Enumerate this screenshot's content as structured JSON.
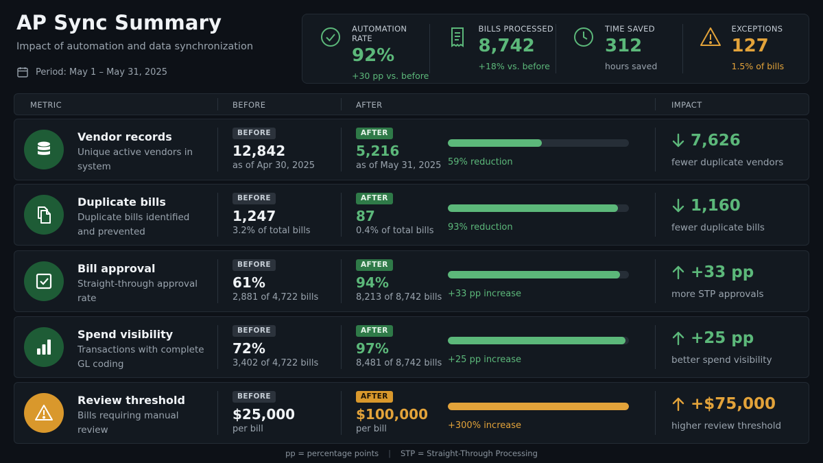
{
  "header": {
    "title": "AP Sync Summary",
    "subtitle": "Impact of automation and data synchronization",
    "period": "Period: May 1 – May 31, 2025"
  },
  "kpis": [
    {
      "label": "AUTOMATION RATE",
      "value": "92%",
      "sub": "+30 pp vs. before",
      "icon": "check-circle-icon"
    },
    {
      "label": "BILLS PROCESSED",
      "value": "8,742",
      "sub": "+18% vs. before",
      "icon": "receipt-icon"
    },
    {
      "label": "TIME SAVED",
      "value": "312",
      "sub": "hours saved",
      "icon": "clock-icon"
    },
    {
      "label": "EXCEPTIONS",
      "value": "127",
      "sub": "1.5% of bills",
      "icon": "warning-icon"
    }
  ],
  "table": {
    "headers": {
      "metric": "METRIC",
      "before": "BEFORE",
      "after": "AFTER",
      "impact": "IMPACT"
    },
    "badge_before": "BEFORE",
    "badge_after": "AFTER",
    "rows": [
      {
        "title": "Vendor records",
        "desc": "Unique active vendors in system",
        "icon": "database-icon",
        "before_value": "12,842",
        "before_sub": "as of Apr 30, 2025",
        "after_value": "5,216",
        "after_sub": "as of May 31, 2025",
        "bar_fraction": 0.52,
        "bar_label": "59% reduction",
        "impact_value": "7,626",
        "impact_direction": "down",
        "impact_sub": "fewer duplicate vendors"
      },
      {
        "title": "Duplicate bills",
        "desc": "Duplicate bills identified and prevented",
        "icon": "documents-icon",
        "before_value": "1,247",
        "before_sub": "3.2% of total bills",
        "after_value": "87",
        "after_sub": "0.4% of total bills",
        "bar_fraction": 0.94,
        "bar_label": "93% reduction",
        "impact_value": "1,160",
        "impact_direction": "down",
        "impact_sub": "fewer duplicate bills"
      },
      {
        "title": "Bill approval",
        "desc": "Straight-through approval rate",
        "icon": "checkbox-icon",
        "before_value": "61%",
        "before_sub": "2,881 of 4,722 bills",
        "after_value": "94%",
        "after_sub": "8,213 of 8,742 bills",
        "bar_fraction": 0.95,
        "bar_label": "+33 pp increase",
        "impact_value": "+33 pp",
        "impact_direction": "up",
        "impact_sub": "more STP approvals"
      },
      {
        "title": "Spend visibility",
        "desc": "Transactions with complete GL coding",
        "icon": "bar-chart-icon",
        "before_value": "72%",
        "before_sub": "3,402 of 4,722 bills",
        "after_value": "97%",
        "after_sub": "8,481 of 8,742 bills",
        "bar_fraction": 0.98,
        "bar_label": "+25 pp increase",
        "impact_value": "+25 pp",
        "impact_direction": "up",
        "impact_sub": "better spend visibility"
      },
      {
        "title": "Review threshold",
        "desc": "Bills requiring manual review",
        "icon": "warning-icon",
        "warn": true,
        "before_value": "$25,000",
        "before_sub": "per bill",
        "after_value": "$100,000",
        "after_sub": "per bill",
        "bar_fraction": 1.0,
        "bar_label": "+300% increase",
        "impact_value": "+$75,000",
        "impact_direction": "up",
        "impact_sub": "higher review threshold"
      }
    ]
  },
  "footer": {
    "note_pp": "pp = percentage points",
    "note_stp": "STP = Straight-Through Processing"
  },
  "colors": {
    "accent_green": "#5cb87a",
    "accent_amber": "#e3a33a",
    "background": "#0d1117"
  }
}
